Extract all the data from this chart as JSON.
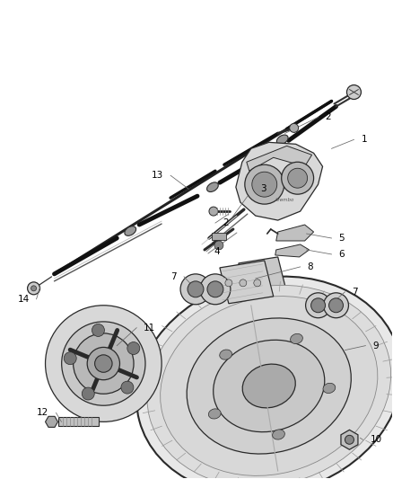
{
  "bg_color": "#ffffff",
  "line_color": "#2a2a2a",
  "fig_width": 4.38,
  "fig_height": 5.33,
  "dpi": 100,
  "cable_color": "#111111",
  "part_fill": "#e0e0e0",
  "part_edge": "#2a2a2a",
  "dark_fill": "#888888",
  "mid_fill": "#bbbbbb",
  "light_fill": "#d5d5d5"
}
